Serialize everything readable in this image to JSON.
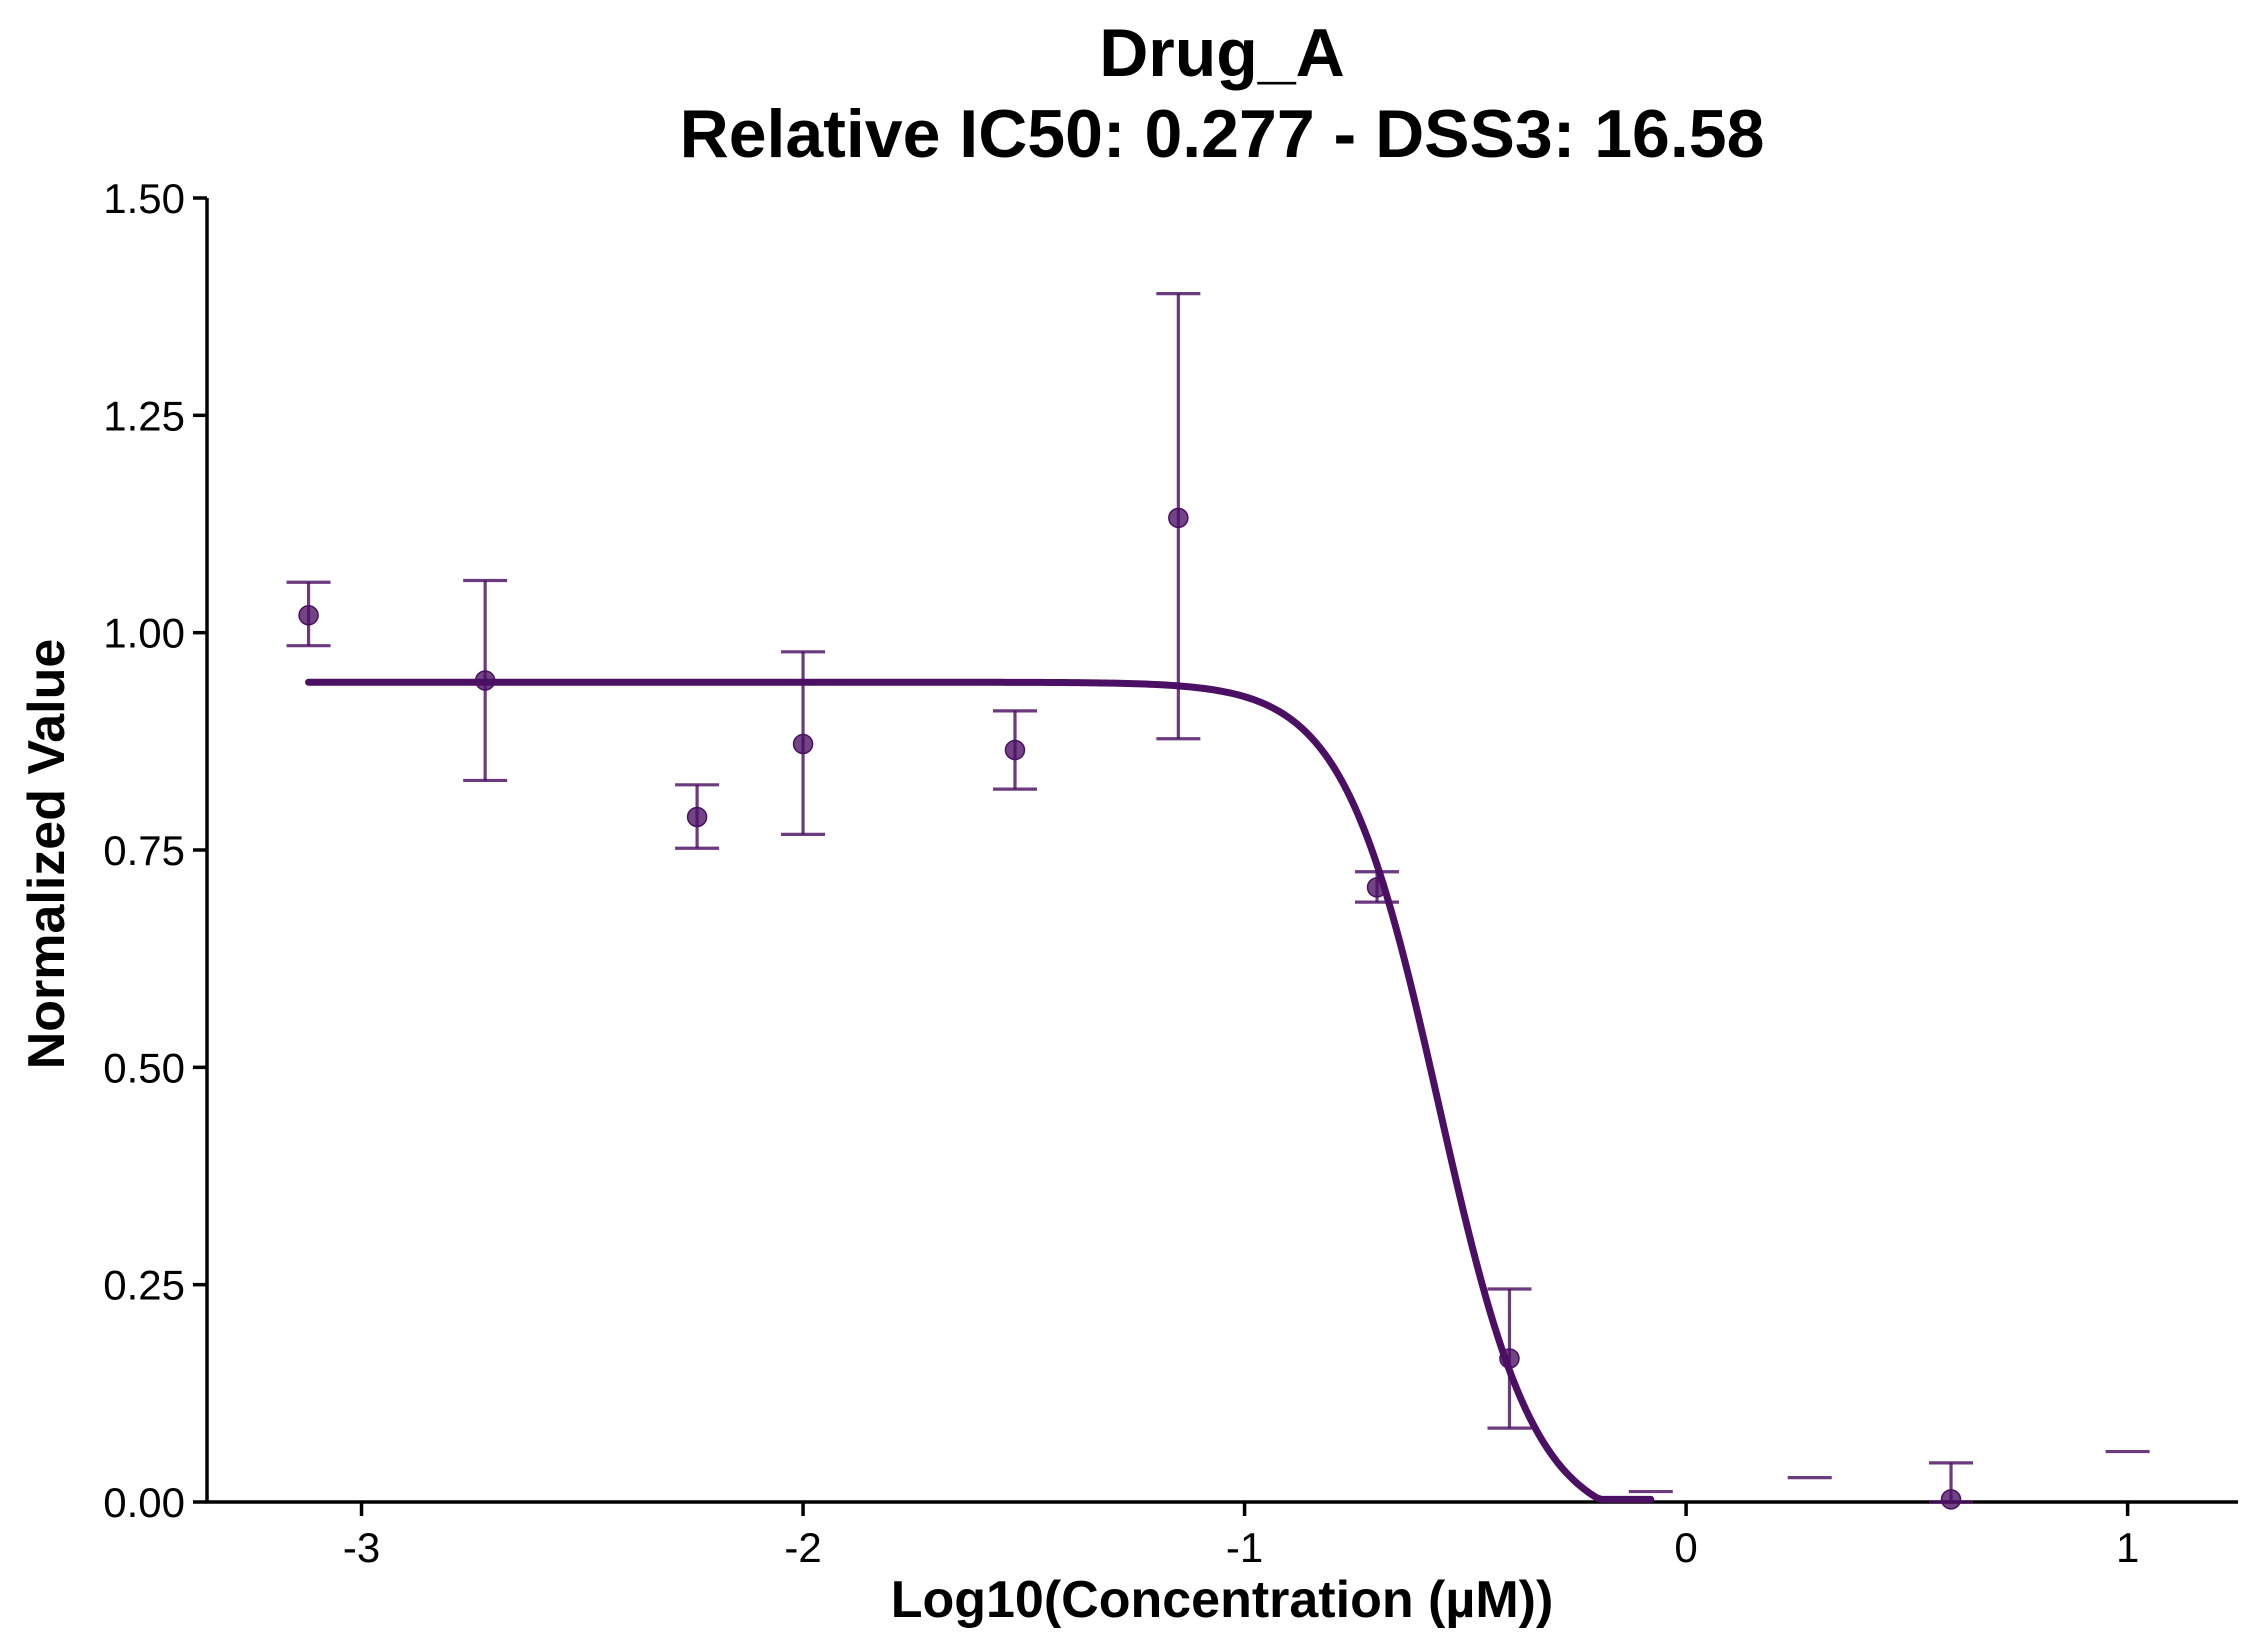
{
  "chart_data": {
    "type": "scatter",
    "title": "Drug_A",
    "subtitle": "Relative IC50: 0.277 - DSS3: 16.58",
    "xlabel": "Log10(Concentration (µM))",
    "ylabel": "Normalized Value",
    "xlim": [
      -3.35,
      1.25
    ],
    "ylim": [
      0,
      1.5
    ],
    "x_ticks": [
      -3,
      -2,
      -1,
      0,
      1
    ],
    "x_tick_labels": [
      "-3",
      "-2",
      "-1",
      "0",
      "1"
    ],
    "y_ticks": [
      0,
      0.25,
      0.5,
      0.75,
      1.0,
      1.25,
      1.5
    ],
    "y_tick_labels": [
      "0.00",
      "0.25",
      "0.50",
      "0.75",
      "1.00",
      "1.25",
      "1.50"
    ],
    "grid": false,
    "color": "#4b0f63",
    "points": [
      {
        "x": -3.12,
        "y": 1.02,
        "ymin": 0.985,
        "ymax": 1.058
      },
      {
        "x": -2.72,
        "y": 0.945,
        "ymin": 0.83,
        "ymax": 1.06
      },
      {
        "x": -2.24,
        "y": 0.788,
        "ymin": 0.752,
        "ymax": 0.825
      },
      {
        "x": -2.0,
        "y": 0.872,
        "ymin": 0.768,
        "ymax": 0.978
      },
      {
        "x": -1.52,
        "y": 0.865,
        "ymin": 0.82,
        "ymax": 0.91
      },
      {
        "x": -1.15,
        "y": 1.132,
        "ymin": 0.878,
        "ymax": 1.39
      },
      {
        "x": -0.7,
        "y": 0.707,
        "ymin": 0.69,
        "ymax": 0.725
      },
      {
        "x": -0.4,
        "y": 0.165,
        "ymin": 0.085,
        "ymax": 0.245
      },
      {
        "x": 0.6,
        "y": 0.003,
        "ymin": 0.0,
        "ymax": 0.045
      }
    ],
    "error_caps_only": [
      {
        "x": -0.08,
        "y": 0.012
      },
      {
        "x": 0.28,
        "y": 0.028
      },
      {
        "x": 1.0,
        "y": 0.058
      }
    ],
    "fit_curve": {
      "top": 0.943,
      "bottom": -0.03,
      "log_ec50": -0.56,
      "hill_slope": 4.0,
      "x_start": -3.12,
      "x_end": -0.08
    }
  }
}
